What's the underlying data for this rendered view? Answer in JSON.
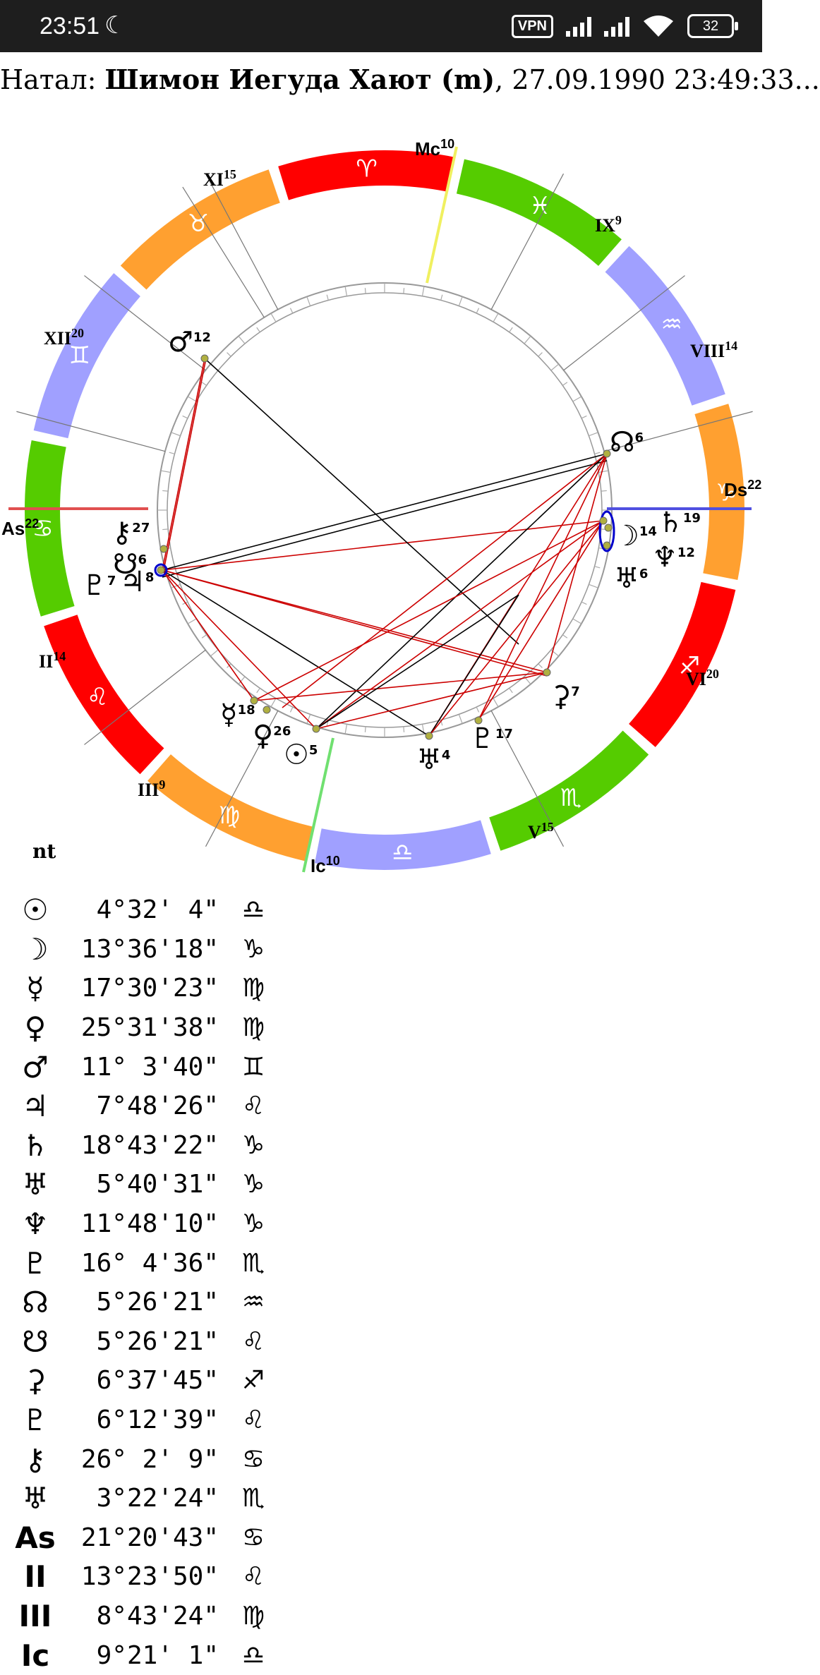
{
  "status_bar": {
    "time": "23:51",
    "vpn_label": "VPN",
    "battery": "32"
  },
  "header": {
    "prefix": "Натал: ",
    "name": "Шимон Иегуда Хают (m)",
    "rest": ", 27.09.1990 23:49:33..."
  },
  "chart": {
    "axis_labels": {
      "mc": {
        "text": "Mc",
        "sup": "10"
      },
      "ic": {
        "text": "Ic",
        "sup": "10"
      },
      "as": {
        "text": "As",
        "sup": "22"
      },
      "ds": {
        "text": "Ds",
        "sup": "22"
      }
    },
    "houses": [
      {
        "label": "XI",
        "sup": "15"
      },
      {
        "label": "IX",
        "sup": "9"
      },
      {
        "label": "XII",
        "sup": "20"
      },
      {
        "label": "VIII",
        "sup": "14"
      },
      {
        "label": "II",
        "sup": "14"
      },
      {
        "label": "VI",
        "sup": "20"
      },
      {
        "label": "III",
        "sup": "9"
      },
      {
        "label": "V",
        "sup": "15"
      }
    ],
    "zodiac": [
      {
        "glyph": "♈",
        "color": "#ff0000"
      },
      {
        "glyph": "♓",
        "color": "#55cc00"
      },
      {
        "glyph": "♒",
        "color": "#a0a0ff"
      },
      {
        "glyph": "♑",
        "color": "#ffa030"
      },
      {
        "glyph": "♐",
        "color": "#ff0000"
      },
      {
        "glyph": "♏",
        "color": "#55cc00"
      },
      {
        "glyph": "♎",
        "color": "#a0a0ff"
      },
      {
        "glyph": "♍",
        "color": "#ffa030"
      },
      {
        "glyph": "♌",
        "color": "#ff0000"
      },
      {
        "glyph": "♋",
        "color": "#55cc00"
      },
      {
        "glyph": "♊",
        "color": "#a0a0ff"
      },
      {
        "glyph": "♉",
        "color": "#ffa030"
      }
    ],
    "planets": [
      {
        "glyph": "♂",
        "sup": "12"
      },
      {
        "glyph": "☊",
        "sup": "6"
      },
      {
        "glyph": "♄",
        "sup": "19"
      },
      {
        "glyph": "☽",
        "sup": "14"
      },
      {
        "glyph": "♆",
        "sup": "12"
      },
      {
        "glyph": "♅",
        "sup": "6"
      },
      {
        "glyph": "⚷",
        "sup": "27"
      },
      {
        "glyph": "☋",
        "sup": "6"
      },
      {
        "glyph": "♃",
        "sup": "8"
      },
      {
        "glyph": "♇",
        "sup": "7"
      },
      {
        "glyph": "⚳",
        "sup": "7"
      },
      {
        "glyph": "☿",
        "sup": "18"
      },
      {
        "glyph": "♀",
        "sup": "26"
      },
      {
        "glyph": "☉",
        "sup": "5"
      },
      {
        "glyph": "♅",
        "sup": "4"
      },
      {
        "glyph": "♇",
        "sup": "17"
      }
    ]
  },
  "nt_label": "nt",
  "positions": [
    {
      "glyph": "☉",
      "degree": "4°32' 4\"",
      "sign": "♎"
    },
    {
      "glyph": "☽",
      "degree": "13°36'18\"",
      "sign": "♑"
    },
    {
      "glyph": "☿",
      "degree": "17°30'23\"",
      "sign": "♍"
    },
    {
      "glyph": "♀",
      "degree": "25°31'38\"",
      "sign": "♍"
    },
    {
      "glyph": "♂",
      "degree": "11° 3'40\"",
      "sign": "♊"
    },
    {
      "glyph": "♃",
      "degree": "7°48'26\"",
      "sign": "♌"
    },
    {
      "glyph": "♄",
      "degree": "18°43'22\"",
      "sign": "♑"
    },
    {
      "glyph": "♅",
      "degree": "5°40'31\"",
      "sign": "♑"
    },
    {
      "glyph": "♆",
      "degree": "11°48'10\"",
      "sign": "♑"
    },
    {
      "glyph": "♇",
      "degree": "16° 4'36\"",
      "sign": "♏"
    },
    {
      "glyph": "☊",
      "degree": "5°26'21\"",
      "sign": "♒"
    },
    {
      "glyph": "☋",
      "degree": "5°26'21\"",
      "sign": "♌"
    },
    {
      "glyph": "⚳",
      "degree": "6°37'45\"",
      "sign": "♐"
    },
    {
      "glyph": "♇",
      "degree": "6°12'39\"",
      "sign": "♌"
    },
    {
      "glyph": "⚷",
      "degree": "26° 2' 9\"",
      "sign": "♋"
    },
    {
      "glyph": "♅",
      "degree": "3°22'24\"",
      "sign": "♏"
    },
    {
      "glyph": "As",
      "degree": "21°20'43\"",
      "sign": "♋"
    },
    {
      "glyph": "II",
      "degree": "13°23'50\"",
      "sign": "♌"
    },
    {
      "glyph": "III",
      "degree": "8°43'24\"",
      "sign": "♍"
    },
    {
      "glyph": "Ic",
      "degree": "9°21' 1\"",
      "sign": "♎"
    }
  ]
}
